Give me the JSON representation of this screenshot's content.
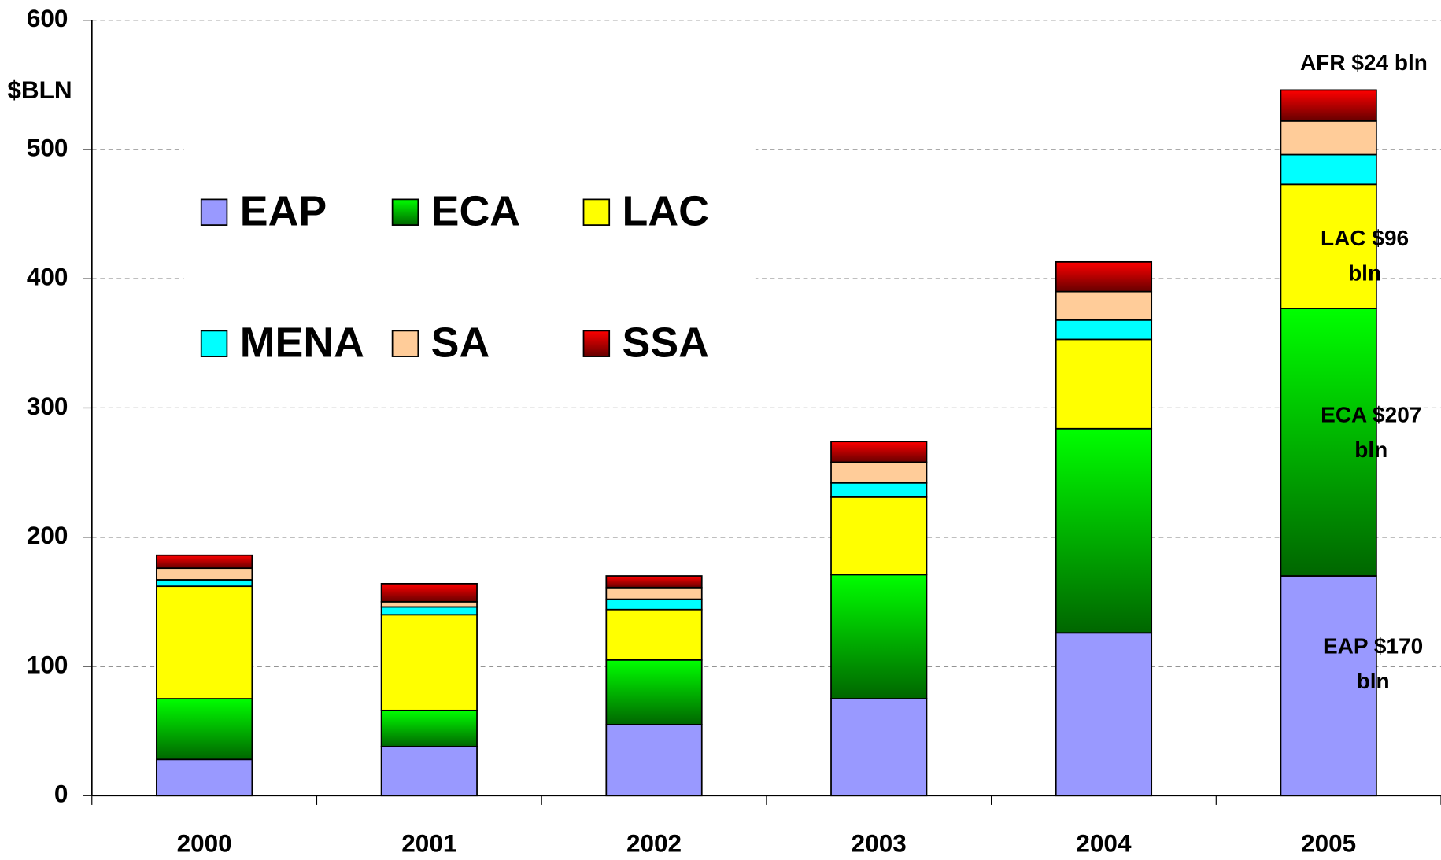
{
  "chart_data": {
    "type": "stacked_bar",
    "y_label": "$BLN",
    "categories": [
      "2000",
      "2001",
      "2002",
      "2003",
      "2004",
      "2005"
    ],
    "series": [
      {
        "name": "EAP",
        "color": "#9999ff",
        "values": [
          28,
          38,
          55,
          75,
          126,
          170
        ]
      },
      {
        "name": "ECA",
        "color": "#00ff00",
        "gradient_to": "#006600",
        "values": [
          47,
          28,
          50,
          96,
          158,
          207
        ]
      },
      {
        "name": "LAC",
        "color": "#ffff00",
        "values": [
          87,
          74,
          39,
          60,
          69,
          96
        ]
      },
      {
        "name": "MENA",
        "color": "#00ffff",
        "values": [
          5,
          6,
          8,
          11,
          15,
          23
        ]
      },
      {
        "name": "SA",
        "color": "#ffcc99",
        "values": [
          9,
          4,
          9,
          16,
          22,
          26
        ]
      },
      {
        "name": "SSA",
        "color": "#ff0000",
        "gradient_to": "#660000",
        "values": [
          10,
          14,
          9,
          16,
          23,
          24
        ]
      }
    ],
    "ylim": [
      0,
      600
    ],
    "yticks": [
      0,
      100,
      200,
      300,
      400,
      500,
      600
    ],
    "grid": true,
    "legend": "upper left",
    "annotations": [
      {
        "lines": [
          "AFR $24 bln"
        ]
      },
      {
        "lines": [
          "LAC $96",
          "bln"
        ]
      },
      {
        "lines": [
          "ECA $207",
          "bln"
        ]
      },
      {
        "lines": [
          "EAP  $170",
          "bln"
        ]
      }
    ]
  }
}
